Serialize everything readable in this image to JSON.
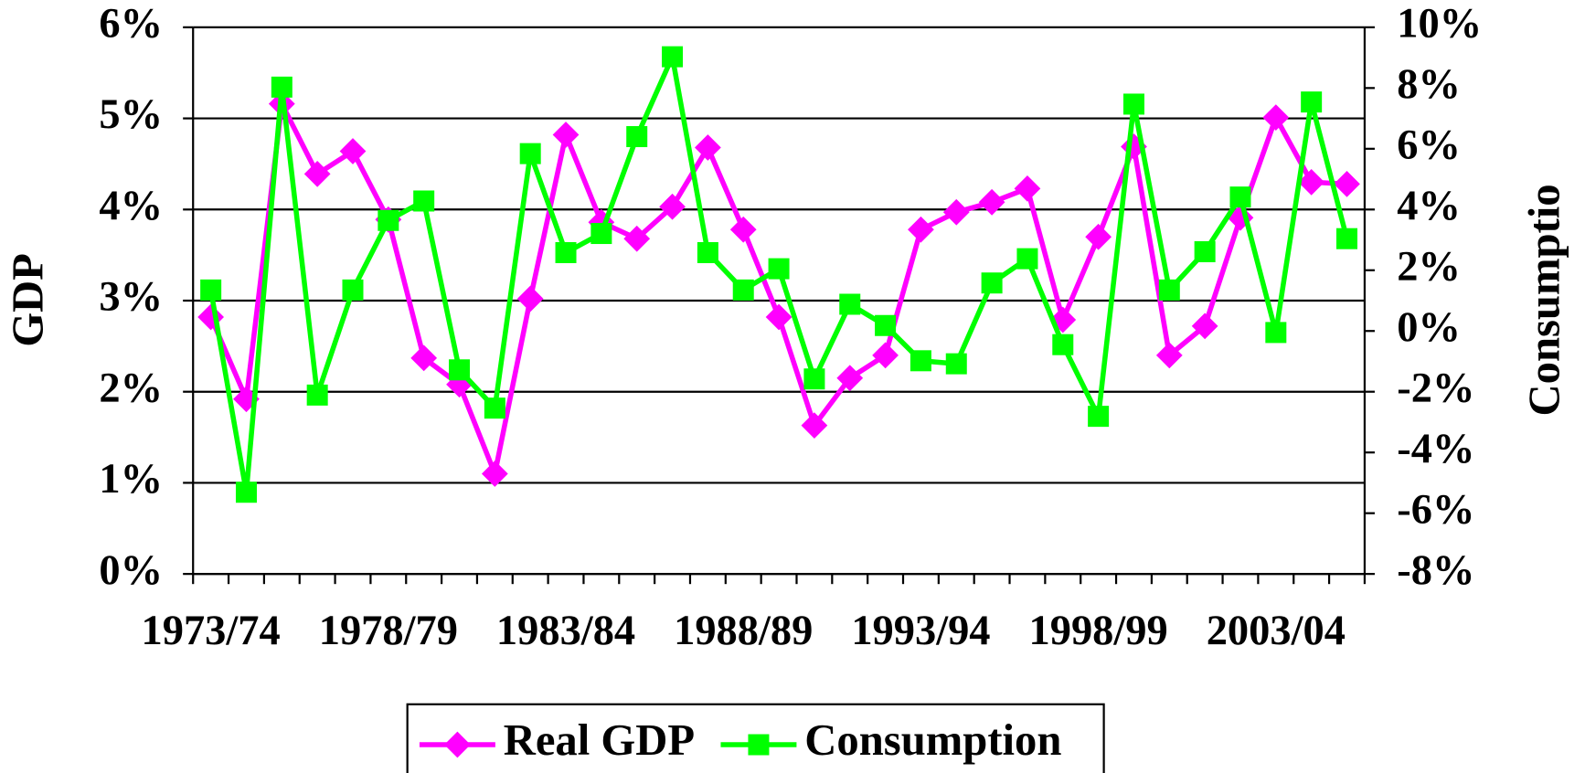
{
  "chart_data": {
    "type": "line",
    "categories": [
      "1973/74",
      null,
      null,
      null,
      null,
      "1978/79",
      null,
      null,
      null,
      null,
      "1983/84",
      null,
      null,
      null,
      null,
      "1988/89",
      null,
      null,
      null,
      null,
      "1993/94",
      null,
      null,
      null,
      null,
      "1998/99",
      null,
      null,
      null,
      null,
      "2003/04",
      null,
      null
    ],
    "y_label": "GDP",
    "y2_label": "Consumptio",
    "series": [
      {
        "name": "Real GDP",
        "color": "#ff00ff",
        "marker": "diamond",
        "values": [
          2.82,
          1.92,
          5.16,
          4.39,
          4.64,
          3.89,
          2.37,
          2.08,
          1.1,
          3.02,
          4.82,
          3.86,
          3.68,
          4.03,
          4.68,
          3.78,
          2.82,
          1.63,
          2.15,
          2.4,
          3.78,
          3.97,
          4.08,
          4.23,
          2.79,
          3.7,
          4.69,
          2.4,
          2.72,
          3.91,
          5.01,
          4.3,
          4.28
        ]
      },
      {
        "name": "Consumption",
        "color": "#00ff00",
        "marker": "square",
        "axis": "y2",
        "values": [
          1.35,
          -5.31,
          8.03,
          -2.11,
          1.35,
          3.64,
          4.28,
          -1.28,
          -2.54,
          5.84,
          2.58,
          3.21,
          6.4,
          9.03,
          2.58,
          1.35,
          2.05,
          -1.58,
          0.88,
          0.18,
          -0.98,
          -1.08,
          1.58,
          2.38,
          -0.45,
          -2.81,
          7.47,
          1.35,
          2.61,
          4.41,
          -0.05,
          7.54,
          3.04
        ]
      }
    ],
    "ylim": [
      0,
      6
    ],
    "yticks": [
      {
        "value": 0,
        "label": "0%"
      },
      {
        "value": 1,
        "label": "1%"
      },
      {
        "value": 2,
        "label": "2%"
      },
      {
        "value": 3,
        "label": "3%"
      },
      {
        "value": 4,
        "label": "4%"
      },
      {
        "value": 5,
        "label": "5%"
      },
      {
        "value": 6,
        "label": "6%"
      }
    ],
    "y2lim": [
      -8,
      10
    ],
    "y2ticks": [
      {
        "value": -8,
        "label": "-8%"
      },
      {
        "value": -6,
        "label": "-6%"
      },
      {
        "value": -4,
        "label": "-4%"
      },
      {
        "value": -2,
        "label": "-2%"
      },
      {
        "value": 0,
        "label": "0%"
      },
      {
        "value": 2,
        "label": "2%"
      },
      {
        "value": 4,
        "label": "4%"
      },
      {
        "value": 6,
        "label": "6%"
      },
      {
        "value": 8,
        "label": "8%"
      },
      {
        "value": 10,
        "label": "10%"
      }
    ],
    "grid": true,
    "legend": "bottom"
  }
}
